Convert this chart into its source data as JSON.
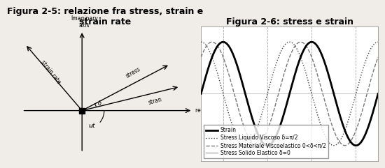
{
  "fig2_5_title": "Figura 2-5: relazione fra stress, strain e\nstrain rate",
  "fig2_6_title": "Figura 2-6: stress e strain",
  "legend_labels": [
    "Strain",
    "Stress Liquido Viscoso δ=π/2",
    "Stress Materiale Viscoelastico 0<δ<π/2",
    "Stress Solido Elastico δ=0"
  ],
  "bg_color": "#f0ede8",
  "strain_color": "#000000",
  "viscous_color": "#444444",
  "viscoelastic_color": "#777777",
  "elastic_color": "#aaaaaa",
  "title_fontsize": 9,
  "legend_fontsize": 5.5
}
